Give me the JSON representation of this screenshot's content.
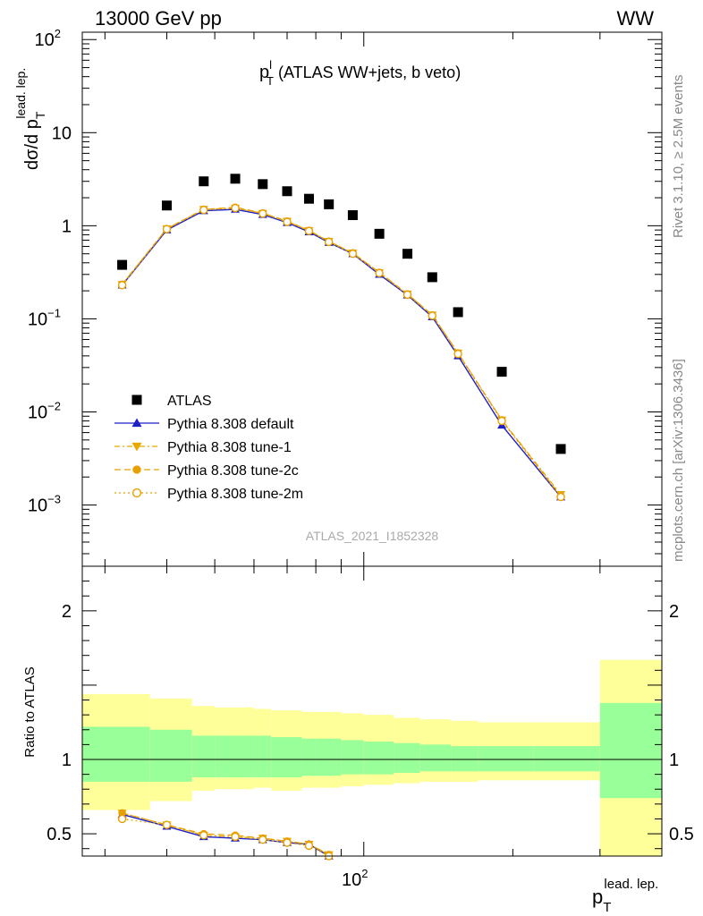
{
  "header": {
    "energy_label": "13000 GeV pp",
    "process_label": "WW"
  },
  "side_labels": {
    "rivet": "Rivet 3.1.10, ≥ 2.5M events",
    "mcplots": "mcplots.cern.ch [arXiv:1306.3436]"
  },
  "chart_data": {
    "type": "scatter",
    "title_main": "p",
    "title_sup": "l",
    "title_sub": "T",
    "title_rest": " (ATLAS WW+jets, b veto)",
    "watermark": "ATLAS_2021_I1852328",
    "ylabel_main": "dσ/d p",
    "ylabel_sub": "T",
    "ylabel_sup": "lead. lep.",
    "xlabel_main": "p",
    "xlabel_sub": "T",
    "xlabel_sup": "lead. lep.",
    "ratio_ylabel": "Ratio to ATLAS",
    "x_scale": "log",
    "y_scale": "log",
    "xlim": [
      27,
      400
    ],
    "ylim": [
      0.00022,
      120
    ],
    "ratio_ylim": [
      0.35,
      2.3
    ],
    "x_tick_labels": [
      {
        "value": 100,
        "label": "10",
        "exp": "2"
      }
    ],
    "y_tick_labels": [
      {
        "value": 100,
        "base": "10",
        "exp": "2"
      },
      {
        "value": 10,
        "base": "10",
        "exp": ""
      },
      {
        "value": 1,
        "base": "1",
        "exp": ""
      },
      {
        "value": 0.1,
        "base": "10",
        "exp": "−1"
      },
      {
        "value": 0.01,
        "base": "10",
        "exp": "−2"
      },
      {
        "value": 0.001,
        "base": "10",
        "exp": "−3"
      }
    ],
    "ratio_tick_labels": [
      {
        "value": 0.5,
        "label": "0.5"
      },
      {
        "value": 1,
        "label": "1"
      },
      {
        "value": 2,
        "label": "2"
      }
    ],
    "legend_position": "lower-left",
    "x": [
      32.5,
      40,
      47.5,
      55,
      62.5,
      70,
      77.5,
      85,
      95,
      107.5,
      122.5,
      137.5,
      155,
      190,
      250,
      340
    ],
    "data": {
      "name": "ATLAS",
      "values": [
        0.38,
        1.65,
        3.0,
        3.2,
        2.8,
        2.35,
        1.95,
        1.7,
        1.3,
        0.82,
        0.5,
        0.28,
        0.118,
        0.027,
        0.004,
        null
      ]
    },
    "bins": [
      {
        "x0": 27,
        "x1": 37,
        "green": [
          0.85,
          1.22
        ],
        "yellow": [
          0.66,
          1.44
        ]
      },
      {
        "x0": 37,
        "x1": 45,
        "green": [
          0.85,
          1.2
        ],
        "yellow": [
          0.72,
          1.41
        ]
      },
      {
        "x0": 45,
        "x1": 50,
        "green": [
          0.88,
          1.16
        ],
        "yellow": [
          0.79,
          1.36
        ]
      },
      {
        "x0": 50,
        "x1": 60,
        "green": [
          0.88,
          1.16
        ],
        "yellow": [
          0.8,
          1.35
        ]
      },
      {
        "x0": 60,
        "x1": 65,
        "green": [
          0.88,
          1.16
        ],
        "yellow": [
          0.81,
          1.34
        ]
      },
      {
        "x0": 65,
        "x1": 75,
        "green": [
          0.88,
          1.15
        ],
        "yellow": [
          0.79,
          1.33
        ]
      },
      {
        "x0": 75,
        "x1": 80,
        "green": [
          0.89,
          1.14
        ],
        "yellow": [
          0.81,
          1.32
        ]
      },
      {
        "x0": 80,
        "x1": 90,
        "green": [
          0.89,
          1.14
        ],
        "yellow": [
          0.81,
          1.32
        ]
      },
      {
        "x0": 90,
        "x1": 100,
        "green": [
          0.9,
          1.13
        ],
        "yellow": [
          0.82,
          1.31
        ]
      },
      {
        "x0": 100,
        "x1": 115,
        "green": [
          0.9,
          1.12
        ],
        "yellow": [
          0.83,
          1.3
        ]
      },
      {
        "x0": 115,
        "x1": 130,
        "green": [
          0.91,
          1.11
        ],
        "yellow": [
          0.84,
          1.28
        ]
      },
      {
        "x0": 130,
        "x1": 150,
        "green": [
          0.92,
          1.1
        ],
        "yellow": [
          0.85,
          1.27
        ]
      },
      {
        "x0": 150,
        "x1": 170,
        "green": [
          0.92,
          1.09
        ],
        "yellow": [
          0.85,
          1.26
        ]
      },
      {
        "x0": 170,
        "x1": 220,
        "green": [
          0.92,
          1.09
        ],
        "yellow": [
          0.86,
          1.25
        ]
      },
      {
        "x0": 220,
        "x1": 300,
        "green": [
          0.92,
          1.09
        ],
        "yellow": [
          0.86,
          1.25
        ]
      },
      {
        "x0": 300,
        "x1": 400,
        "green": [
          0.74,
          1.38
        ],
        "yellow": [
          0.35,
          1.67
        ]
      }
    ],
    "series": [
      {
        "name": "Pythia 8.308 default",
        "color": "#1f1fc8",
        "marker": "triangle-up",
        "dash": "",
        "values": [
          0.23,
          0.9,
          1.45,
          1.5,
          1.32,
          1.08,
          0.86,
          0.66,
          0.5,
          0.3,
          0.18,
          0.105,
          0.04,
          0.0072,
          0.00122,
          null
        ],
        "ratio": [
          0.63,
          0.55,
          0.48,
          0.47,
          0.46,
          0.44,
          0.43,
          0.35
        ]
      },
      {
        "name": "Pythia 8.308 tune-1",
        "color": "#e8a800",
        "marker": "triangle-down",
        "dash": "6,3,2,3",
        "values": [
          0.235,
          0.93,
          1.5,
          1.55,
          1.36,
          1.12,
          0.89,
          0.68,
          0.51,
          0.315,
          0.185,
          0.11,
          0.043,
          0.0082,
          0.0013,
          null
        ],
        "ratio": [
          0.64,
          0.56,
          0.49,
          0.48,
          0.47,
          0.45,
          0.43,
          0.36
        ]
      },
      {
        "name": "Pythia 8.308 tune-2c",
        "color": "#e8a000",
        "marker": "circle",
        "dash": "7,4",
        "values": [
          0.235,
          0.93,
          1.5,
          1.58,
          1.37,
          1.12,
          0.89,
          0.68,
          0.51,
          0.315,
          0.185,
          0.11,
          0.043,
          0.0082,
          0.00125,
          null
        ],
        "ratio": [
          0.64,
          0.56,
          0.5,
          0.49,
          0.47,
          0.45,
          0.43,
          0.36
        ]
      },
      {
        "name": "Pythia 8.308 tune-2m",
        "color": "#e8a000",
        "marker": "circle-open",
        "dash": "2,3",
        "values": [
          0.23,
          0.92,
          1.48,
          1.55,
          1.35,
          1.1,
          0.88,
          0.67,
          0.5,
          0.31,
          0.182,
          0.108,
          0.042,
          0.008,
          0.00122,
          null
        ],
        "ratio": [
          0.6,
          0.56,
          0.49,
          0.48,
          0.46,
          0.44,
          0.42,
          0.35
        ]
      }
    ]
  }
}
